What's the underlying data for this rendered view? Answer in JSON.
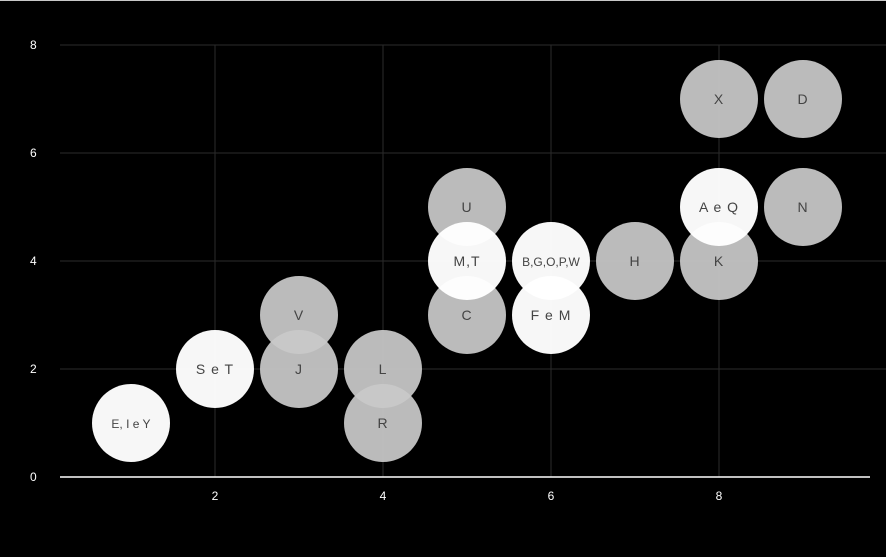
{
  "chart_data": {
    "type": "scatter",
    "title": "",
    "xlabel": "",
    "ylabel": "",
    "xlim": [
      0,
      10
    ],
    "ylim": [
      0,
      8
    ],
    "x_ticks": [
      "2",
      "4",
      "6",
      "8"
    ],
    "y_ticks": [
      "0",
      "2",
      "4",
      "6",
      "8"
    ],
    "grid": true,
    "colors": {
      "background": "#000000",
      "grid": "#2b2b2b",
      "axis": "#ffffff",
      "bubble_light": "#ffffff",
      "bubble_dark": "#c9c9c9",
      "label": "#444444"
    },
    "points": [
      {
        "x": 1,
        "y": 1,
        "label": "E, I e Y",
        "shade": "light"
      },
      {
        "x": 2,
        "y": 2,
        "label": "S e T",
        "shade": "light"
      },
      {
        "x": 3,
        "y": 3,
        "label": "V",
        "shade": "dark"
      },
      {
        "x": 3,
        "y": 2,
        "label": "J",
        "shade": "dark"
      },
      {
        "x": 4,
        "y": 2,
        "label": "L",
        "shade": "dark"
      },
      {
        "x": 4,
        "y": 1,
        "label": "R",
        "shade": "dark"
      },
      {
        "x": 5,
        "y": 5,
        "label": "U",
        "shade": "dark"
      },
      {
        "x": 5,
        "y": 3,
        "label": "C",
        "shade": "dark"
      },
      {
        "x": 5,
        "y": 4,
        "label": "M,T",
        "shade": "light"
      },
      {
        "x": 6,
        "y": 3,
        "label": "F e M",
        "shade": "light"
      },
      {
        "x": 6,
        "y": 4,
        "label": "B,G,O,P,W",
        "shade": "light"
      },
      {
        "x": 7,
        "y": 4,
        "label": "H",
        "shade": "dark"
      },
      {
        "x": 8,
        "y": 7,
        "label": "X",
        "shade": "dark"
      },
      {
        "x": 8,
        "y": 4,
        "label": "K",
        "shade": "dark"
      },
      {
        "x": 8,
        "y": 5,
        "label": "A e Q",
        "shade": "light"
      },
      {
        "x": 9,
        "y": 7,
        "label": "D",
        "shade": "dark"
      },
      {
        "x": 9,
        "y": 5,
        "label": "N",
        "shade": "dark"
      }
    ]
  }
}
